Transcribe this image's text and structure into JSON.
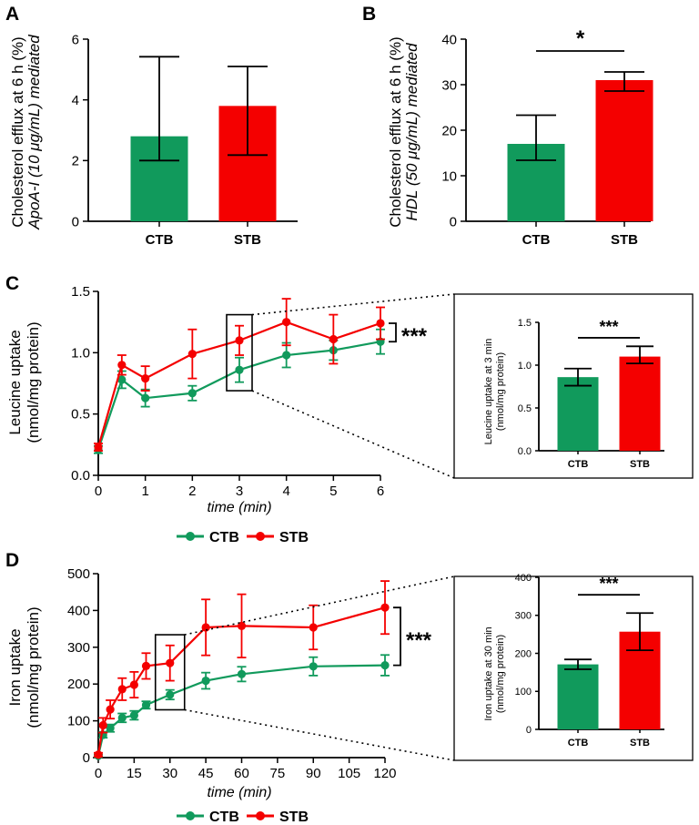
{
  "colors": {
    "ctb": "#119a5c",
    "stb": "#f40000"
  },
  "legend": {
    "ctb": "CTB",
    "stb": "STB"
  },
  "chart_data": [
    {
      "id": "A",
      "type": "bar",
      "panel_label": "A",
      "categories": [
        "CTB",
        "STB"
      ],
      "values": [
        2.8,
        3.8
      ],
      "error_low": [
        2.0,
        2.18
      ],
      "error_high": [
        5.42,
        5.1
      ],
      "ylabel": "Cholesterol efflux at 6 h (%)",
      "ylabel2": "ApoA-I (10 μg/mL) mediated",
      "ylim": [
        0,
        6
      ],
      "yticks": [
        0,
        2,
        4,
        6
      ],
      "significance": ""
    },
    {
      "id": "B",
      "type": "bar",
      "panel_label": "B",
      "categories": [
        "CTB",
        "STB"
      ],
      "values": [
        17.0,
        31.0
      ],
      "error_low": [
        13.4,
        28.6
      ],
      "error_high": [
        23.3,
        32.8
      ],
      "ylabel": "Cholesterol efflux at 6 h (%)",
      "ylabel2": "HDL (50 μg/mL) mediated",
      "ylim": [
        0,
        40
      ],
      "yticks": [
        0,
        10,
        20,
        30,
        40
      ],
      "significance": "*"
    },
    {
      "id": "C",
      "type": "line",
      "panel_label": "C",
      "x": [
        0,
        0.5,
        1,
        2,
        3,
        4,
        5,
        6
      ],
      "series": [
        {
          "name": "CTB",
          "values": [
            0.21,
            0.78,
            0.63,
            0.67,
            0.86,
            0.98,
            1.02,
            1.09
          ],
          "errors": [
            0.03,
            0.07,
            0.07,
            0.06,
            0.1,
            0.1,
            0.08,
            0.1
          ]
        },
        {
          "name": "STB",
          "values": [
            0.23,
            0.9,
            0.79,
            0.99,
            1.1,
            1.25,
            1.11,
            1.24
          ],
          "errors": [
            0.03,
            0.08,
            0.1,
            0.2,
            0.12,
            0.19,
            0.2,
            0.13
          ]
        }
      ],
      "xlabel": "time (min)",
      "ylabel": "Leucine uptake",
      "ylabel2": "(nmol/mg protein)",
      "xlim": [
        0,
        6
      ],
      "xticks": [
        0,
        1,
        2,
        3,
        4,
        5,
        6
      ],
      "ylim": [
        0,
        1.5
      ],
      "yticks": [
        "0.0",
        "0.5",
        "1.0",
        "1.5"
      ],
      "highlight_x": 3,
      "significance": "***"
    },
    {
      "id": "C-inset",
      "type": "bar",
      "categories": [
        "CTB",
        "STB"
      ],
      "values": [
        0.86,
        1.1
      ],
      "error_low": [
        0.76,
        1.02
      ],
      "error_high": [
        0.96,
        1.22
      ],
      "ylabel": "Leucine uptake at 3 min",
      "ylabel2": "(nmol/mg protein)",
      "ylim": [
        0,
        1.5
      ],
      "yticks": [
        "0.0",
        "0.5",
        "1.0",
        "1.5"
      ],
      "significance": "***"
    },
    {
      "id": "D",
      "type": "line",
      "panel_label": "D",
      "x": [
        0,
        2,
        5,
        10,
        15,
        20,
        30,
        45,
        60,
        90,
        120
      ],
      "series": [
        {
          "name": "CTB",
          "values": [
            5,
            62,
            80,
            108,
            115,
            143,
            171,
            209,
            227,
            248,
            251
          ],
          "errors": [
            3,
            8,
            10,
            12,
            12,
            10,
            13,
            22,
            20,
            25,
            28
          ]
        },
        {
          "name": "STB",
          "values": [
            8,
            88,
            131,
            186,
            198,
            249,
            257,
            354,
            358,
            354,
            408
          ],
          "errors": [
            5,
            20,
            25,
            30,
            35,
            35,
            48,
            76,
            86,
            60,
            72
          ]
        }
      ],
      "xlabel": "time (min)",
      "ylabel": "Iron uptake",
      "ylabel2": "(nmol/mg protein)",
      "xlim": [
        0,
        120
      ],
      "xticks": [
        0,
        15,
        30,
        45,
        60,
        75,
        90,
        105,
        120
      ],
      "ylim": [
        0,
        500
      ],
      "yticks": [
        0,
        100,
        200,
        300,
        400,
        500
      ],
      "highlight_x": 30,
      "significance": "***"
    },
    {
      "id": "D-inset",
      "type": "bar",
      "categories": [
        "CTB",
        "STB"
      ],
      "values": [
        171,
        257
      ],
      "error_low": [
        158,
        208
      ],
      "error_high": [
        184,
        306
      ],
      "ylabel": "Iron uptake at 30 min",
      "ylabel2": "(nmol/mg protein)",
      "ylim": [
        0,
        400
      ],
      "yticks": [
        0,
        100,
        200,
        300,
        400
      ],
      "significance": "***"
    }
  ]
}
